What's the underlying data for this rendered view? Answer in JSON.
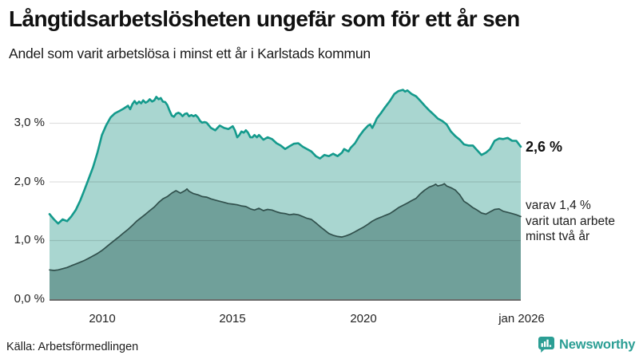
{
  "header": {
    "title": "Långtidsarbetslösheten ungefär som för ett år sen",
    "subtitle": "Andel som varit arbetslösa i minst ett år i Karlstads kommun"
  },
  "footer": {
    "source": "Källa: Arbetsförmedlingen",
    "brand": "Newsworthy"
  },
  "colors": {
    "total_line": "#149a8c",
    "total_fill": "#a9d6d0",
    "two_year_line": "#31504c",
    "two_year_fill": "#70a09a",
    "grid": "rgba(0,0,0,0.12)",
    "axis": "#3a3a3a",
    "brand": "#2b9e94",
    "text": "#1c1c1c"
  },
  "chart_data": {
    "type": "area",
    "title": "Långtidsarbetslösheten ungefär som för ett år sen",
    "subtitle": "Andel som varit arbetslösa i minst ett år i Karlstads kommun",
    "xlabel": "",
    "ylabel": "",
    "xlim": [
      2008,
      2026
    ],
    "ylim": [
      0,
      3.7
    ],
    "grid": "horizontal",
    "y_tick_labels": [
      "3,0 %",
      "2,0 %",
      "1,0 %",
      "0,0 %"
    ],
    "y_tick_values": [
      3.0,
      2.0,
      1.0,
      0.0
    ],
    "x_tick_labels": [
      "2010",
      "2015",
      "2020",
      "jan 2026"
    ],
    "x_tick_values": [
      2010,
      2015,
      2020,
      2026
    ],
    "end_label_total": "2,6 %",
    "annotation": {
      "line1": "varav 1,4 %",
      "line2": "varit utan arbete",
      "line3": "minst två år"
    },
    "series": [
      {
        "name": "minst ett år",
        "end_value": 2.6,
        "points": [
          [
            2008.0,
            1.45
          ],
          [
            2008.17,
            1.36
          ],
          [
            2008.33,
            1.29
          ],
          [
            2008.5,
            1.36
          ],
          [
            2008.67,
            1.33
          ],
          [
            2008.83,
            1.41
          ],
          [
            2009.0,
            1.52
          ],
          [
            2009.17,
            1.68
          ],
          [
            2009.33,
            1.86
          ],
          [
            2009.5,
            2.06
          ],
          [
            2009.67,
            2.26
          ],
          [
            2009.83,
            2.5
          ],
          [
            2010.0,
            2.8
          ],
          [
            2010.17,
            2.97
          ],
          [
            2010.33,
            3.1
          ],
          [
            2010.5,
            3.17
          ],
          [
            2010.67,
            3.21
          ],
          [
            2010.83,
            3.25
          ],
          [
            2011.0,
            3.3
          ],
          [
            2011.08,
            3.24
          ],
          [
            2011.17,
            3.33
          ],
          [
            2011.25,
            3.38
          ],
          [
            2011.33,
            3.33
          ],
          [
            2011.42,
            3.37
          ],
          [
            2011.5,
            3.34
          ],
          [
            2011.58,
            3.39
          ],
          [
            2011.67,
            3.35
          ],
          [
            2011.75,
            3.37
          ],
          [
            2011.83,
            3.41
          ],
          [
            2011.92,
            3.37
          ],
          [
            2012.0,
            3.39
          ],
          [
            2012.08,
            3.45
          ],
          [
            2012.17,
            3.41
          ],
          [
            2012.25,
            3.43
          ],
          [
            2012.33,
            3.37
          ],
          [
            2012.42,
            3.36
          ],
          [
            2012.5,
            3.31
          ],
          [
            2012.58,
            3.22
          ],
          [
            2012.67,
            3.13
          ],
          [
            2012.75,
            3.11
          ],
          [
            2012.83,
            3.16
          ],
          [
            2012.92,
            3.18
          ],
          [
            2013.0,
            3.16
          ],
          [
            2013.08,
            3.12
          ],
          [
            2013.17,
            3.16
          ],
          [
            2013.25,
            3.17
          ],
          [
            2013.33,
            3.12
          ],
          [
            2013.42,
            3.14
          ],
          [
            2013.5,
            3.12
          ],
          [
            2013.58,
            3.14
          ],
          [
            2013.67,
            3.1
          ],
          [
            2013.75,
            3.04
          ],
          [
            2013.83,
            3.01
          ],
          [
            2013.92,
            3.02
          ],
          [
            2014.0,
            3.01
          ],
          [
            2014.17,
            2.92
          ],
          [
            2014.33,
            2.88
          ],
          [
            2014.5,
            2.96
          ],
          [
            2014.67,
            2.92
          ],
          [
            2014.83,
            2.9
          ],
          [
            2015.0,
            2.95
          ],
          [
            2015.08,
            2.88
          ],
          [
            2015.17,
            2.76
          ],
          [
            2015.25,
            2.8
          ],
          [
            2015.33,
            2.86
          ],
          [
            2015.42,
            2.84
          ],
          [
            2015.5,
            2.88
          ],
          [
            2015.58,
            2.84
          ],
          [
            2015.67,
            2.76
          ],
          [
            2015.75,
            2.76
          ],
          [
            2015.83,
            2.8
          ],
          [
            2015.92,
            2.76
          ],
          [
            2016.0,
            2.8
          ],
          [
            2016.17,
            2.72
          ],
          [
            2016.33,
            2.76
          ],
          [
            2016.5,
            2.73
          ],
          [
            2016.67,
            2.66
          ],
          [
            2016.83,
            2.62
          ],
          [
            2017.0,
            2.56
          ],
          [
            2017.17,
            2.61
          ],
          [
            2017.33,
            2.65
          ],
          [
            2017.5,
            2.66
          ],
          [
            2017.67,
            2.6
          ],
          [
            2017.83,
            2.56
          ],
          [
            2018.0,
            2.52
          ],
          [
            2018.17,
            2.44
          ],
          [
            2018.33,
            2.4
          ],
          [
            2018.5,
            2.46
          ],
          [
            2018.67,
            2.44
          ],
          [
            2018.83,
            2.48
          ],
          [
            2019.0,
            2.44
          ],
          [
            2019.17,
            2.5
          ],
          [
            2019.25,
            2.56
          ],
          [
            2019.42,
            2.52
          ],
          [
            2019.5,
            2.58
          ],
          [
            2019.67,
            2.66
          ],
          [
            2019.83,
            2.78
          ],
          [
            2020.0,
            2.88
          ],
          [
            2020.17,
            2.96
          ],
          [
            2020.25,
            2.98
          ],
          [
            2020.33,
            2.92
          ],
          [
            2020.42,
            3.0
          ],
          [
            2020.5,
            3.08
          ],
          [
            2020.67,
            3.18
          ],
          [
            2020.83,
            3.28
          ],
          [
            2021.0,
            3.38
          ],
          [
            2021.17,
            3.5
          ],
          [
            2021.33,
            3.55
          ],
          [
            2021.5,
            3.57
          ],
          [
            2021.58,
            3.54
          ],
          [
            2021.67,
            3.56
          ],
          [
            2021.83,
            3.5
          ],
          [
            2022.0,
            3.46
          ],
          [
            2022.17,
            3.38
          ],
          [
            2022.33,
            3.3
          ],
          [
            2022.5,
            3.22
          ],
          [
            2022.67,
            3.15
          ],
          [
            2022.83,
            3.08
          ],
          [
            2023.0,
            3.04
          ],
          [
            2023.17,
            2.98
          ],
          [
            2023.33,
            2.86
          ],
          [
            2023.5,
            2.78
          ],
          [
            2023.67,
            2.72
          ],
          [
            2023.83,
            2.64
          ],
          [
            2024.0,
            2.62
          ],
          [
            2024.17,
            2.62
          ],
          [
            2024.33,
            2.54
          ],
          [
            2024.5,
            2.46
          ],
          [
            2024.67,
            2.5
          ],
          [
            2024.83,
            2.56
          ],
          [
            2025.0,
            2.7
          ],
          [
            2025.17,
            2.74
          ],
          [
            2025.33,
            2.73
          ],
          [
            2025.5,
            2.75
          ],
          [
            2025.67,
            2.7
          ],
          [
            2025.83,
            2.7
          ],
          [
            2026.0,
            2.6
          ]
        ]
      },
      {
        "name": "minst två år",
        "end_value": 1.4,
        "points": [
          [
            2008.0,
            0.5
          ],
          [
            2008.17,
            0.49
          ],
          [
            2008.33,
            0.5
          ],
          [
            2008.5,
            0.52
          ],
          [
            2008.67,
            0.54
          ],
          [
            2008.83,
            0.57
          ],
          [
            2009.0,
            0.6
          ],
          [
            2009.17,
            0.63
          ],
          [
            2009.33,
            0.66
          ],
          [
            2009.5,
            0.7
          ],
          [
            2009.67,
            0.74
          ],
          [
            2009.83,
            0.78
          ],
          [
            2010.0,
            0.83
          ],
          [
            2010.17,
            0.89
          ],
          [
            2010.33,
            0.95
          ],
          [
            2010.5,
            1.01
          ],
          [
            2010.67,
            1.07
          ],
          [
            2010.83,
            1.13
          ],
          [
            2011.0,
            1.19
          ],
          [
            2011.17,
            1.26
          ],
          [
            2011.33,
            1.33
          ],
          [
            2011.5,
            1.39
          ],
          [
            2011.67,
            1.45
          ],
          [
            2011.83,
            1.51
          ],
          [
            2012.0,
            1.57
          ],
          [
            2012.17,
            1.65
          ],
          [
            2012.33,
            1.71
          ],
          [
            2012.5,
            1.75
          ],
          [
            2012.67,
            1.81
          ],
          [
            2012.83,
            1.85
          ],
          [
            2013.0,
            1.81
          ],
          [
            2013.17,
            1.85
          ],
          [
            2013.25,
            1.88
          ],
          [
            2013.33,
            1.84
          ],
          [
            2013.5,
            1.8
          ],
          [
            2013.67,
            1.78
          ],
          [
            2013.83,
            1.75
          ],
          [
            2014.0,
            1.74
          ],
          [
            2014.17,
            1.71
          ],
          [
            2014.33,
            1.69
          ],
          [
            2014.5,
            1.67
          ],
          [
            2014.67,
            1.65
          ],
          [
            2014.83,
            1.63
          ],
          [
            2015.0,
            1.62
          ],
          [
            2015.17,
            1.61
          ],
          [
            2015.33,
            1.59
          ],
          [
            2015.5,
            1.58
          ],
          [
            2015.67,
            1.54
          ],
          [
            2015.83,
            1.52
          ],
          [
            2016.0,
            1.55
          ],
          [
            2016.17,
            1.51
          ],
          [
            2016.33,
            1.53
          ],
          [
            2016.5,
            1.52
          ],
          [
            2016.67,
            1.49
          ],
          [
            2016.83,
            1.47
          ],
          [
            2017.0,
            1.46
          ],
          [
            2017.17,
            1.44
          ],
          [
            2017.33,
            1.45
          ],
          [
            2017.5,
            1.44
          ],
          [
            2017.67,
            1.41
          ],
          [
            2017.83,
            1.38
          ],
          [
            2018.0,
            1.36
          ],
          [
            2018.17,
            1.3
          ],
          [
            2018.33,
            1.24
          ],
          [
            2018.5,
            1.18
          ],
          [
            2018.67,
            1.12
          ],
          [
            2018.83,
            1.09
          ],
          [
            2019.0,
            1.07
          ],
          [
            2019.17,
            1.06
          ],
          [
            2019.33,
            1.08
          ],
          [
            2019.5,
            1.11
          ],
          [
            2019.67,
            1.15
          ],
          [
            2019.83,
            1.19
          ],
          [
            2020.0,
            1.23
          ],
          [
            2020.17,
            1.28
          ],
          [
            2020.33,
            1.33
          ],
          [
            2020.5,
            1.37
          ],
          [
            2020.67,
            1.4
          ],
          [
            2020.83,
            1.43
          ],
          [
            2021.0,
            1.46
          ],
          [
            2021.17,
            1.51
          ],
          [
            2021.33,
            1.56
          ],
          [
            2021.5,
            1.6
          ],
          [
            2021.67,
            1.64
          ],
          [
            2021.83,
            1.68
          ],
          [
            2022.0,
            1.72
          ],
          [
            2022.17,
            1.8
          ],
          [
            2022.33,
            1.86
          ],
          [
            2022.5,
            1.91
          ],
          [
            2022.67,
            1.94
          ],
          [
            2022.75,
            1.96
          ],
          [
            2022.83,
            1.93
          ],
          [
            2023.0,
            1.95
          ],
          [
            2023.08,
            1.97
          ],
          [
            2023.17,
            1.93
          ],
          [
            2023.33,
            1.9
          ],
          [
            2023.5,
            1.86
          ],
          [
            2023.67,
            1.78
          ],
          [
            2023.83,
            1.67
          ],
          [
            2024.0,
            1.62
          ],
          [
            2024.17,
            1.56
          ],
          [
            2024.33,
            1.52
          ],
          [
            2024.5,
            1.47
          ],
          [
            2024.67,
            1.45
          ],
          [
            2024.83,
            1.49
          ],
          [
            2025.0,
            1.53
          ],
          [
            2025.17,
            1.54
          ],
          [
            2025.33,
            1.5
          ],
          [
            2025.5,
            1.48
          ],
          [
            2025.67,
            1.46
          ],
          [
            2025.83,
            1.44
          ],
          [
            2026.0,
            1.41
          ]
        ]
      }
    ]
  }
}
